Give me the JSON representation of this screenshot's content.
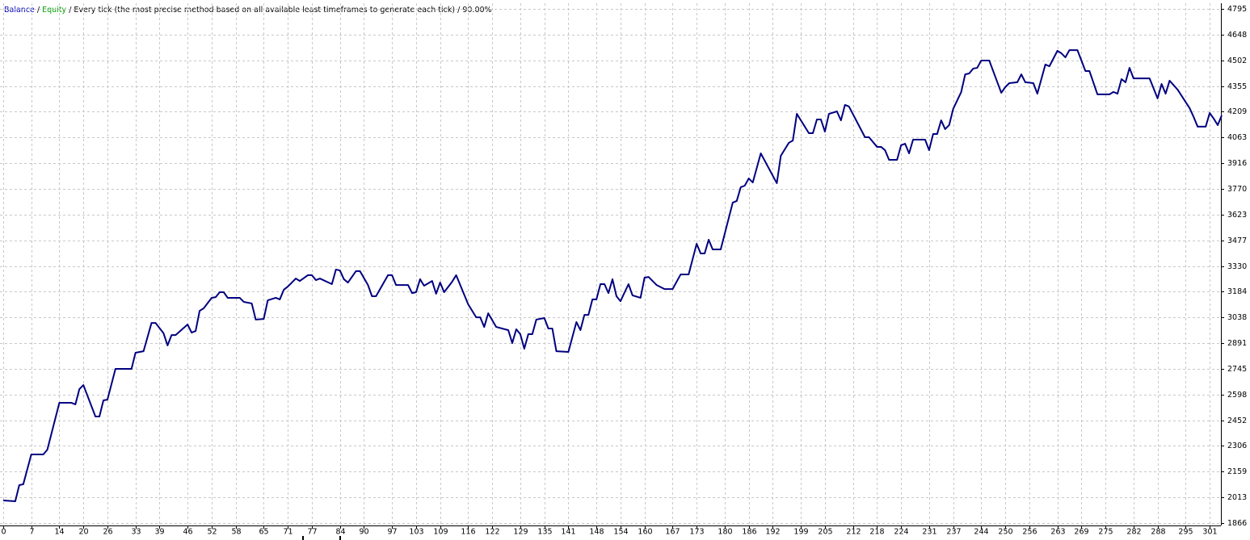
{
  "chart_data": {
    "type": "line",
    "title_parts": [
      {
        "text": "Balance",
        "color": "#0000c0"
      },
      {
        "text": " / "
      },
      {
        "text": "Equity",
        "color": "#00a000"
      },
      {
        "text": " / Every tick (the most precise method based on all available least timeframes to generate each tick) / 90.00%"
      }
    ],
    "color": "#000080",
    "grid": true,
    "xlim": [
      0,
      304
    ],
    "xticks": [
      0,
      7,
      14,
      20,
      26,
      33,
      39,
      46,
      52,
      58,
      65,
      71,
      77,
      84,
      90,
      97,
      103,
      109,
      116,
      122,
      129,
      135,
      141,
      148,
      154,
      160,
      167,
      173,
      180,
      186,
      192,
      199,
      205,
      212,
      218,
      224,
      231,
      237,
      244,
      250,
      256,
      263,
      269,
      275,
      282,
      288,
      295,
      301
    ],
    "ylim": [
      1866,
      4795
    ],
    "yticks": [
      1866,
      2013,
      2159,
      2306,
      2452,
      2598,
      2745,
      2891,
      3038,
      3184,
      3330,
      3477,
      3623,
      3770,
      3916,
      4063,
      4209,
      4355,
      4502,
      4648,
      4795
    ],
    "x": [
      0,
      3,
      4,
      5,
      7,
      10,
      11,
      14,
      17,
      18,
      19,
      20,
      23,
      24,
      25,
      26,
      28,
      32,
      33,
      35,
      37,
      38,
      40,
      41,
      42,
      43,
      46,
      47,
      48,
      49,
      50,
      52,
      53,
      54,
      55,
      56,
      59,
      60,
      62,
      63,
      65,
      66,
      68,
      69,
      70,
      71,
      73,
      74,
      76,
      77,
      78,
      79,
      82,
      83,
      84,
      85,
      86,
      88,
      89,
      91,
      92,
      93,
      96,
      97,
      98,
      101,
      102,
      103,
      104,
      105,
      107,
      108,
      109,
      110,
      112,
      113,
      116,
      118,
      119,
      120,
      121,
      123,
      126,
      127,
      128,
      129,
      130,
      131,
      132,
      133,
      135,
      136,
      137,
      138,
      141,
      143,
      144,
      145,
      146,
      147,
      148,
      149,
      150,
      151,
      152,
      153,
      154,
      156,
      157,
      159,
      160,
      161,
      163,
      165,
      167,
      169,
      171,
      173,
      174,
      175,
      176,
      177,
      179,
      182,
      183,
      184,
      185,
      186,
      187,
      189,
      193,
      194,
      196,
      197,
      198,
      201,
      202,
      203,
      204,
      205,
      206,
      208,
      209,
      210,
      211,
      215,
      216,
      218,
      219,
      220,
      221,
      223,
      224,
      225,
      226,
      227,
      230,
      231,
      232,
      233,
      234,
      235,
      236,
      237,
      239,
      240,
      241,
      242,
      243,
      244,
      246,
      249,
      250,
      251,
      253,
      254,
      255,
      257,
      258,
      260,
      261,
      263,
      264,
      265,
      266,
      268,
      270,
      271,
      273,
      276,
      277,
      278,
      279,
      280,
      281,
      282,
      286,
      288,
      289,
      290,
      291,
      293,
      296,
      297,
      298,
      300,
      301,
      302,
      303,
      304
    ],
    "values": [
      1995,
      1990,
      2082,
      2087,
      2257,
      2257,
      2284,
      2551,
      2551,
      2542,
      2629,
      2652,
      2473,
      2473,
      2565,
      2569,
      2744,
      2744,
      2836,
      2845,
      3006,
      3006,
      2947,
      2878,
      2937,
      2937,
      2997,
      2951,
      2960,
      3075,
      3089,
      3149,
      3153,
      3181,
      3181,
      3149,
      3149,
      3126,
      3117,
      3025,
      3029,
      3135,
      3149,
      3140,
      3195,
      3213,
      3259,
      3245,
      3278,
      3278,
      3250,
      3259,
      3227,
      3310,
      3305,
      3255,
      3236,
      3301,
      3301,
      3222,
      3158,
      3158,
      3278,
      3278,
      3222,
      3222,
      3176,
      3181,
      3255,
      3218,
      3245,
      3172,
      3236,
      3181,
      3241,
      3278,
      3112,
      3038,
      3038,
      2983,
      3061,
      2983,
      2965,
      2891,
      2970,
      2942,
      2859,
      2942,
      2942,
      3025,
      3034,
      2974,
      2974,
      2845,
      2841,
      3011,
      2965,
      3052,
      3052,
      3140,
      3140,
      3227,
      3227,
      3176,
      3255,
      3158,
      3130,
      3227,
      3163,
      3149,
      3264,
      3268,
      3222,
      3199,
      3199,
      3282,
      3282,
      3457,
      3402,
      3402,
      3480,
      3425,
      3425,
      3691,
      3701,
      3779,
      3788,
      3829,
      3806,
      3972,
      3802,
      3958,
      4032,
      4045,
      4197,
      4087,
      4087,
      4165,
      4165,
      4096,
      4197,
      4211,
      4160,
      4248,
      4239,
      4064,
      4064,
      4009,
      4009,
      3990,
      3935,
      3935,
      4018,
      4027,
      3972,
      4050,
      4050,
      3990,
      4082,
      4082,
      4160,
      4110,
      4133,
      4225,
      4321,
      4422,
      4427,
      4455,
      4459,
      4501,
      4501,
      4317,
      4349,
      4372,
      4377,
      4422,
      4377,
      4372,
      4312,
      4478,
      4468,
      4556,
      4542,
      4519,
      4560,
      4560,
      4441,
      4441,
      4308,
      4308,
      4322,
      4312,
      4395,
      4377,
      4459,
      4399,
      4399,
      4285,
      4367,
      4312,
      4386,
      4335,
      4229,
      4179,
      4124,
      4124,
      4202,
      4170,
      4133,
      4188
    ]
  }
}
